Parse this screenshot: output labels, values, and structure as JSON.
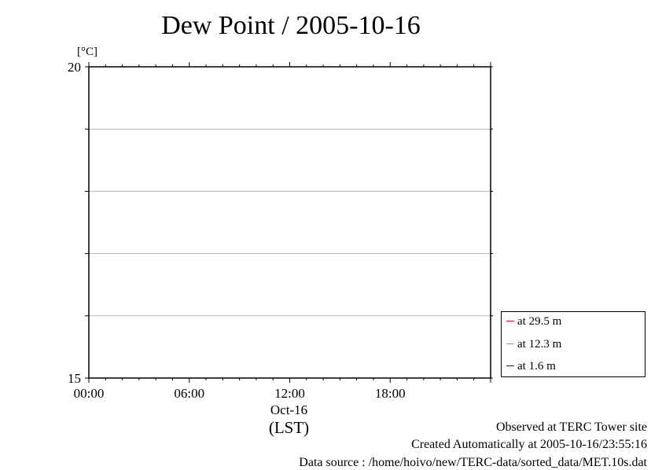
{
  "chart_data": {
    "type": "line",
    "title": "Dew Point / 2005-10-16",
    "ylabel": "[°C]",
    "xlabel": "(LST)",
    "ylim": [
      15,
      20
    ],
    "y_ticks": [
      "20",
      "15"
    ],
    "y_gridlines": [
      16,
      17,
      18,
      19
    ],
    "x_ticks": [
      "00:00",
      "06:00",
      "12:00",
      "18:00"
    ],
    "x_tick_hours": [
      0,
      6,
      12,
      18
    ],
    "xlim_hours": [
      0,
      24
    ],
    "x_date_label": "Oct-16",
    "grid": true,
    "legend_position": "bottom-right outside",
    "series": [
      {
        "name": "at 29.5 m",
        "color": "#ff0000",
        "values": []
      },
      {
        "name": "at 12.3 m",
        "color": "#00ff00",
        "values": []
      },
      {
        "name": "at 1.6 m",
        "color": "#0000ff",
        "values": []
      }
    ]
  },
  "footer": {
    "observed": "Observed at TERC Tower site",
    "created": "Created Automatically at 2005-10-16/23:55:16",
    "source": "Data source : /home/hoivo/new/TERC-data/sorted_data/MET.10s.dat"
  }
}
